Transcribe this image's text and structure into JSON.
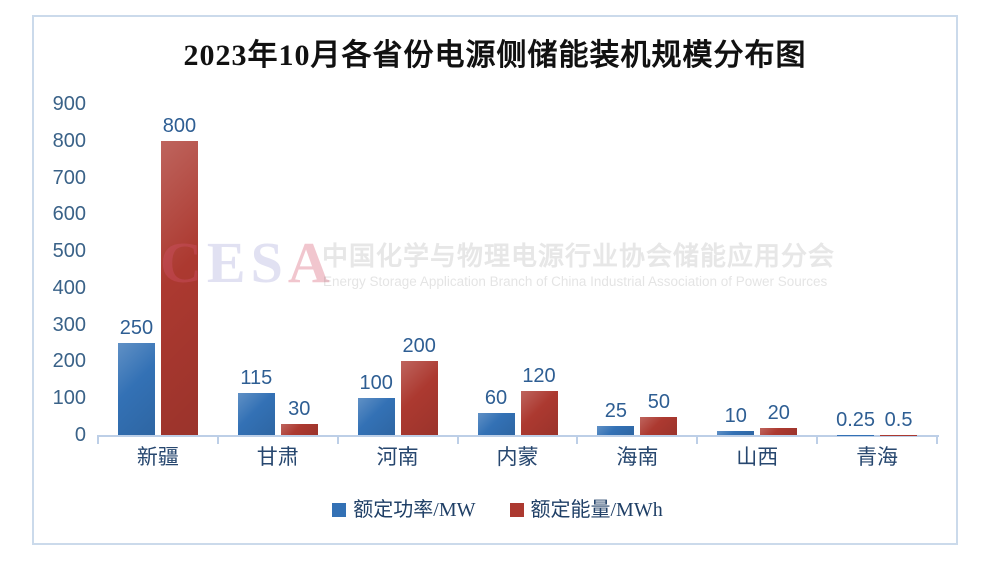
{
  "chart_data": {
    "type": "bar",
    "title": "2023年10月各省份电源侧储能装机规模分布图",
    "categories": [
      "新疆",
      "甘肃",
      "河南",
      "内蒙",
      "海南",
      "山西",
      "青海"
    ],
    "series": [
      {
        "name": "额定功率/MW",
        "key": "power",
        "color": "#3371B5",
        "values": [
          250,
          115,
          100,
          60,
          25,
          10,
          0.25
        ]
      },
      {
        "name": "额定能量/MWh",
        "key": "energy",
        "color": "#AC3930",
        "values": [
          800,
          30,
          200,
          120,
          50,
          20,
          0.5
        ]
      }
    ],
    "ylim": [
      0,
      900
    ],
    "ytick_interval": 100,
    "grid": false,
    "legend_position": "bottom",
    "value_labels_shown": true
  },
  "watermark": {
    "logo_letters": [
      {
        "ch": "C",
        "color": "rgba(210,85,110,0.34)"
      },
      {
        "ch": "E",
        "color": "rgba(130,130,200,0.24)"
      },
      {
        "ch": "S",
        "color": "rgba(130,130,200,0.24)"
      },
      {
        "ch": "A",
        "color": "rgba(213,78,104,0.32)"
      }
    ],
    "cn": "中国化学与物理电源行业协会储能应用分会",
    "en": "Energy Storage Application Branch of China Industrial Association of Power Sources"
  },
  "colors": {
    "frame_border": "#CBDAEB",
    "axis_line": "#BDCFE7",
    "tick_label": "#3A6288",
    "value_label": "#2E5E93",
    "category_label": "#27476F",
    "legend_text": "#1F3F66",
    "title": "#111111"
  }
}
